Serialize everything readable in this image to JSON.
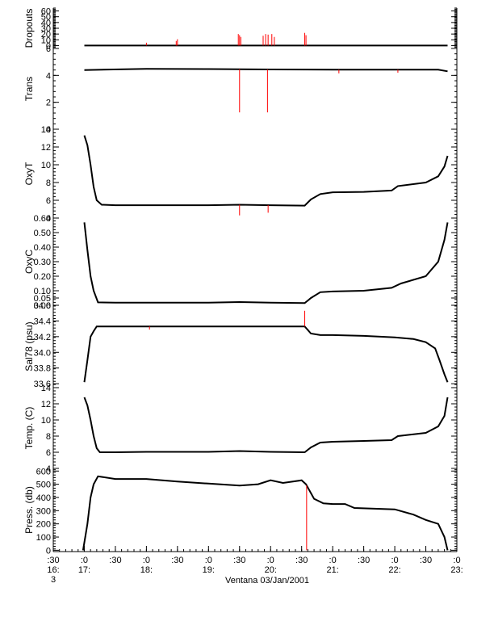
{
  "chart_data": {
    "type": "line",
    "title": "",
    "xlabel": "Ventana 03/Jan/2001",
    "x_range_hours": [
      16.5,
      23.0
    ],
    "x_ticks": [
      {
        "hour": 16.5,
        "l1": ":30",
        "l2": "16:",
        "l3": "3"
      },
      {
        "hour": 17.0,
        "l1": ":0",
        "l2": "17:",
        "l3": ""
      },
      {
        "hour": 17.5,
        "l1": ":30",
        "l2": "",
        "l3": ""
      },
      {
        "hour": 18.0,
        "l1": ":0",
        "l2": "18:",
        "l3": ""
      },
      {
        "hour": 18.5,
        "l1": ":30",
        "l2": "",
        "l3": ""
      },
      {
        "hour": 19.0,
        "l1": ":0",
        "l2": "19:",
        "l3": ""
      },
      {
        "hour": 19.5,
        "l1": ":30",
        "l2": "",
        "l3": ""
      },
      {
        "hour": 20.0,
        "l1": ":0",
        "l2": "20:",
        "l3": ""
      },
      {
        "hour": 20.5,
        "l1": ":30",
        "l2": "",
        "l3": ""
      },
      {
        "hour": 21.0,
        "l1": ":0",
        "l2": "21:",
        "l3": ""
      },
      {
        "hour": 21.5,
        "l1": ":30",
        "l2": "",
        "l3": ""
      },
      {
        "hour": 22.0,
        "l1": ":0",
        "l2": "22:",
        "l3": ""
      },
      {
        "hour": 22.5,
        "l1": ":30",
        "l2": "",
        "l3": ""
      },
      {
        "hour": 23.0,
        "l1": ":0",
        "l2": "23:",
        "l3": ""
      }
    ],
    "colors": {
      "line": "#000000",
      "spike": "#ff0000"
    },
    "panels": [
      {
        "key": "dropouts",
        "ylabel": "Dropouts",
        "ylim": [
          -5,
          65
        ],
        "yticks": [
          0,
          10,
          20,
          30,
          40,
          50,
          60
        ],
        "ytick_labels": [
          "0",
          "10",
          "20",
          "30",
          "40",
          "50",
          "60"
        ],
        "points": [
          [
            17.0,
            0
          ],
          [
            22.85,
            0
          ]
        ],
        "spikes": [
          [
            18.0,
            5
          ],
          [
            18.48,
            8
          ],
          [
            18.5,
            11
          ],
          [
            19.48,
            20
          ],
          [
            19.5,
            18
          ],
          [
            19.52,
            15
          ],
          [
            19.88,
            17
          ],
          [
            19.92,
            20
          ],
          [
            19.96,
            19
          ],
          [
            20.02,
            20
          ],
          [
            20.06,
            15
          ],
          [
            20.55,
            22
          ],
          [
            20.57,
            18
          ]
        ]
      },
      {
        "key": "trans",
        "ylabel": "Trans",
        "ylim": [
          0,
          6
        ],
        "yticks": [
          0,
          2,
          4,
          6
        ],
        "ytick_labels": [
          "0",
          "2",
          "4",
          "6"
        ],
        "points": [
          [
            17.0,
            4.4
          ],
          [
            18.0,
            4.48
          ],
          [
            19.0,
            4.47
          ],
          [
            20.0,
            4.44
          ],
          [
            21.0,
            4.42
          ],
          [
            22.0,
            4.42
          ],
          [
            22.7,
            4.42
          ],
          [
            22.85,
            4.3
          ]
        ],
        "spikes": [
          [
            19.5,
            1.25
          ],
          [
            19.95,
            1.25
          ],
          [
            21.1,
            4.15
          ],
          [
            22.05,
            4.2
          ]
        ]
      },
      {
        "key": "oxyt",
        "ylabel": "OxyT",
        "ylim": [
          4,
          14
        ],
        "yticks": [
          4,
          6,
          8,
          10,
          12,
          14
        ],
        "ytick_labels": [
          "4",
          "6",
          "8",
          "10",
          "12",
          "14"
        ],
        "points": [
          [
            17.0,
            13.3
          ],
          [
            17.05,
            12.2
          ],
          [
            17.1,
            10.0
          ],
          [
            17.15,
            7.5
          ],
          [
            17.2,
            6.0
          ],
          [
            17.28,
            5.5
          ],
          [
            17.5,
            5.45
          ],
          [
            18.0,
            5.45
          ],
          [
            18.5,
            5.45
          ],
          [
            19.0,
            5.45
          ],
          [
            19.5,
            5.5
          ],
          [
            20.0,
            5.45
          ],
          [
            20.55,
            5.4
          ],
          [
            20.65,
            6.1
          ],
          [
            20.8,
            6.7
          ],
          [
            21.0,
            6.9
          ],
          [
            21.5,
            6.95
          ],
          [
            21.95,
            7.1
          ],
          [
            22.05,
            7.6
          ],
          [
            22.5,
            8.0
          ],
          [
            22.7,
            8.7
          ],
          [
            22.8,
            9.8
          ],
          [
            22.85,
            11.0
          ]
        ],
        "spikes": [
          [
            19.5,
            4.3
          ],
          [
            19.96,
            4.6
          ]
        ]
      },
      {
        "key": "oxyc",
        "ylabel": "OxyC",
        "ylim": [
          0,
          0.6
        ],
        "yticks": [
          0.0,
          0.05,
          0.1,
          0.2,
          0.3,
          0.4,
          0.5,
          0.6
        ],
        "ytick_labels": [
          "0.00",
          "0.05",
          "0.10",
          "0.20",
          "0.30",
          "0.40",
          "0.50",
          "0.60"
        ],
        "points": [
          [
            17.0,
            0.57
          ],
          [
            17.05,
            0.38
          ],
          [
            17.1,
            0.2
          ],
          [
            17.15,
            0.1
          ],
          [
            17.22,
            0.02
          ],
          [
            17.5,
            0.018
          ],
          [
            18.0,
            0.018
          ],
          [
            19.0,
            0.018
          ],
          [
            19.5,
            0.022
          ],
          [
            20.0,
            0.018
          ],
          [
            20.55,
            0.015
          ],
          [
            20.65,
            0.05
          ],
          [
            20.8,
            0.09
          ],
          [
            21.0,
            0.095
          ],
          [
            21.5,
            0.1
          ],
          [
            21.95,
            0.12
          ],
          [
            22.1,
            0.15
          ],
          [
            22.5,
            0.2
          ],
          [
            22.7,
            0.3
          ],
          [
            22.8,
            0.45
          ],
          [
            22.85,
            0.57
          ]
        ],
        "spikes": []
      },
      {
        "key": "sal",
        "ylabel": "Sal78 (psu)",
        "ylim": [
          33.55,
          34.6
        ],
        "yticks": [
          33.6,
          33.8,
          34.0,
          34.2,
          34.4,
          34.6
        ],
        "ytick_labels": [
          "33.6",
          "33.8",
          "34.0",
          "34.2",
          "34.4",
          "34.6"
        ],
        "points": [
          [
            17.0,
            33.62
          ],
          [
            17.05,
            33.9
          ],
          [
            17.1,
            34.2
          ],
          [
            17.15,
            34.27
          ],
          [
            17.2,
            34.33
          ],
          [
            17.5,
            34.33
          ],
          [
            18.0,
            34.33
          ],
          [
            19.0,
            34.33
          ],
          [
            19.5,
            34.33
          ],
          [
            20.0,
            34.33
          ],
          [
            20.55,
            34.33
          ],
          [
            20.65,
            34.24
          ],
          [
            20.8,
            34.22
          ],
          [
            21.0,
            34.22
          ],
          [
            21.5,
            34.21
          ],
          [
            22.0,
            34.19
          ],
          [
            22.3,
            34.17
          ],
          [
            22.5,
            34.13
          ],
          [
            22.65,
            34.05
          ],
          [
            22.72,
            33.9
          ],
          [
            22.8,
            33.72
          ],
          [
            22.85,
            33.62
          ]
        ],
        "spikes": [
          [
            20.55,
            34.53
          ],
          [
            18.05,
            34.29
          ]
        ]
      },
      {
        "key": "temp",
        "ylabel": "Temp. (C)",
        "ylim": [
          4,
          14
        ],
        "yticks": [
          4,
          6,
          8,
          10,
          12,
          14
        ],
        "ytick_labels": [
          "4",
          "6",
          "8",
          "10",
          "12",
          "14"
        ],
        "points": [
          [
            17.0,
            12.8
          ],
          [
            17.05,
            11.8
          ],
          [
            17.1,
            10.0
          ],
          [
            17.15,
            8.0
          ],
          [
            17.2,
            6.5
          ],
          [
            17.25,
            6.0
          ],
          [
            17.5,
            6.0
          ],
          [
            18.0,
            6.05
          ],
          [
            19.0,
            6.05
          ],
          [
            19.5,
            6.15
          ],
          [
            20.0,
            6.05
          ],
          [
            20.55,
            6.0
          ],
          [
            20.65,
            6.6
          ],
          [
            20.8,
            7.2
          ],
          [
            21.0,
            7.3
          ],
          [
            21.5,
            7.4
          ],
          [
            21.95,
            7.5
          ],
          [
            22.05,
            8.0
          ],
          [
            22.5,
            8.4
          ],
          [
            22.7,
            9.2
          ],
          [
            22.8,
            10.5
          ],
          [
            22.85,
            12.8
          ]
        ],
        "spikes": []
      },
      {
        "key": "press",
        "ylabel": "Press. (db)",
        "ylim": [
          -10,
          620
        ],
        "yticks": [
          0,
          100,
          200,
          300,
          400,
          500,
          600
        ],
        "ytick_labels": [
          "0",
          "100",
          "200",
          "300",
          "400",
          "500",
          "600"
        ],
        "points": [
          [
            16.98,
            0
          ],
          [
            17.05,
            200
          ],
          [
            17.1,
            400
          ],
          [
            17.15,
            500
          ],
          [
            17.22,
            560
          ],
          [
            17.5,
            540
          ],
          [
            18.0,
            540
          ],
          [
            18.5,
            520
          ],
          [
            19.0,
            505
          ],
          [
            19.5,
            490
          ],
          [
            19.8,
            500
          ],
          [
            20.0,
            530
          ],
          [
            20.2,
            510
          ],
          [
            20.5,
            530
          ],
          [
            20.57,
            500
          ],
          [
            20.7,
            390
          ],
          [
            20.85,
            355
          ],
          [
            21.0,
            350
          ],
          [
            21.2,
            350
          ],
          [
            21.35,
            320
          ],
          [
            22.0,
            310
          ],
          [
            22.3,
            270
          ],
          [
            22.5,
            230
          ],
          [
            22.7,
            200
          ],
          [
            22.8,
            100
          ],
          [
            22.85,
            0
          ]
        ],
        "spikes": [
          [
            20.58,
            0
          ]
        ]
      }
    ]
  }
}
